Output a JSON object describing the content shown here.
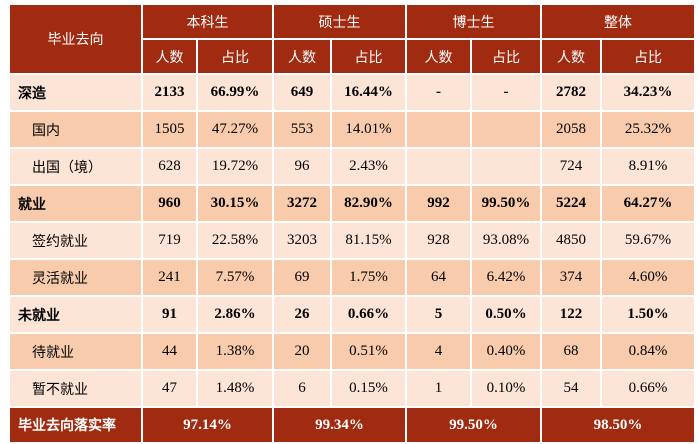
{
  "header": {
    "row_label": "毕业去向",
    "groups": [
      "本科生",
      "硕士生",
      "博士生",
      "整体"
    ],
    "count_label": "人数",
    "ratio_label": "占比"
  },
  "rows": [
    {
      "label": "深造",
      "type": "main",
      "cells": [
        "2133",
        "66.99%",
        "649",
        "16.44%",
        "-",
        "-",
        "2782",
        "34.23%"
      ]
    },
    {
      "label": "国内",
      "type": "sub",
      "cells": [
        "1505",
        "47.27%",
        "553",
        "14.01%",
        "",
        "",
        "2058",
        "25.32%"
      ]
    },
    {
      "label": "出国（境）",
      "type": "sub",
      "cells": [
        "628",
        "19.72%",
        "96",
        "2.43%",
        "",
        "",
        "724",
        "8.91%"
      ]
    },
    {
      "label": "就业",
      "type": "main",
      "cells": [
        "960",
        "30.15%",
        "3272",
        "82.90%",
        "992",
        "99.50%",
        "5224",
        "64.27%"
      ]
    },
    {
      "label": "签约就业",
      "type": "sub",
      "cells": [
        "719",
        "22.58%",
        "3203",
        "81.15%",
        "928",
        "93.08%",
        "4850",
        "59.67%"
      ]
    },
    {
      "label": "灵活就业",
      "type": "sub",
      "cells": [
        "241",
        "7.57%",
        "69",
        "1.75%",
        "64",
        "6.42%",
        "374",
        "4.60%"
      ]
    },
    {
      "label": "未就业",
      "type": "main",
      "cells": [
        "91",
        "2.86%",
        "26",
        "0.66%",
        "5",
        "0.50%",
        "122",
        "1.50%"
      ]
    },
    {
      "label": "待就业",
      "type": "sub",
      "cells": [
        "44",
        "1.38%",
        "20",
        "0.51%",
        "4",
        "0.40%",
        "68",
        "0.84%"
      ]
    },
    {
      "label": "暂不就业",
      "type": "sub",
      "cells": [
        "47",
        "1.48%",
        "6",
        "0.15%",
        "1",
        "0.10%",
        "54",
        "0.66%"
      ]
    }
  ],
  "footer": {
    "label": "毕业去向落实率",
    "values": [
      "97.14%",
      "99.34%",
      "99.50%",
      "98.50%"
    ]
  },
  "colors": {
    "header": "#a02b10",
    "row_light": "#fce4d6",
    "row_dark": "#f8cbad"
  }
}
